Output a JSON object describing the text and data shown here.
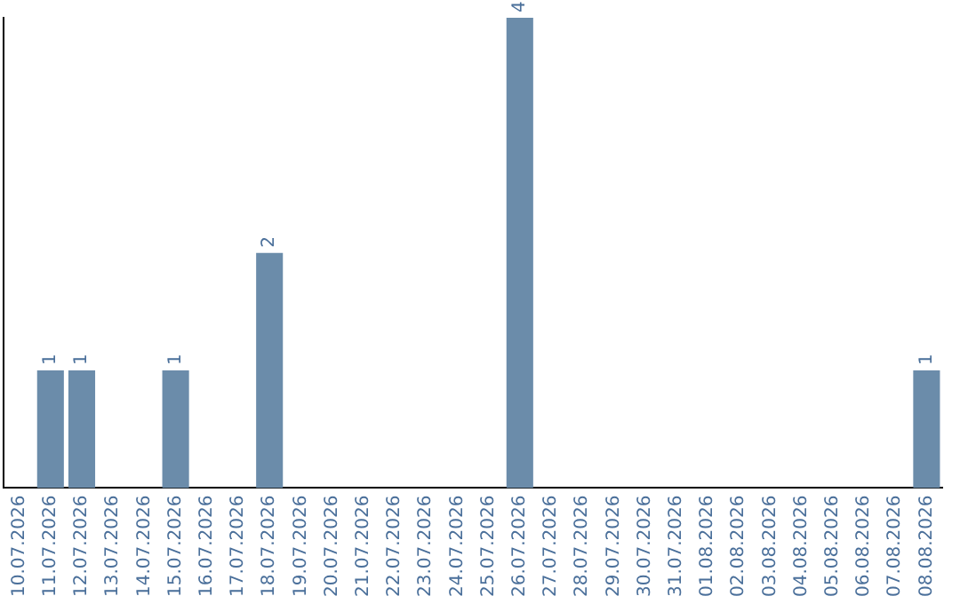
{
  "chart_data": {
    "type": "bar",
    "categories": [
      "10.07.2026",
      "11.07.2026",
      "12.07.2026",
      "13.07.2026",
      "14.07.2026",
      "15.07.2026",
      "16.07.2026",
      "17.07.2026",
      "18.07.2026",
      "19.07.2026",
      "20.07.2026",
      "21.07.2026",
      "22.07.2026",
      "23.07.2026",
      "24.07.2026",
      "25.07.2026",
      "26.07.2026",
      "27.07.2026",
      "28.07.2026",
      "29.07.2026",
      "30.07.2026",
      "31.07.2026",
      "01.08.2026",
      "02.08.2026",
      "03.08.2026",
      "04.08.2026",
      "05.08.2026",
      "06.08.2026",
      "07.08.2026",
      "08.08.2026"
    ],
    "values": [
      0,
      1,
      1,
      0,
      0,
      1,
      0,
      0,
      2,
      0,
      0,
      0,
      0,
      0,
      0,
      0,
      4,
      0,
      0,
      0,
      0,
      0,
      0,
      0,
      0,
      0,
      0,
      0,
      0,
      1
    ],
    "value_labels": [
      null,
      "1",
      "1",
      null,
      null,
      "1",
      null,
      null,
      "2",
      null,
      null,
      null,
      null,
      null,
      null,
      null,
      "4",
      null,
      null,
      null,
      null,
      null,
      null,
      null,
      null,
      null,
      null,
      null,
      null,
      "1"
    ],
    "color": "#6b8caa",
    "ylim": [
      0,
      4
    ],
    "tick_labels": "x",
    "grid": false,
    "legend": false
  }
}
